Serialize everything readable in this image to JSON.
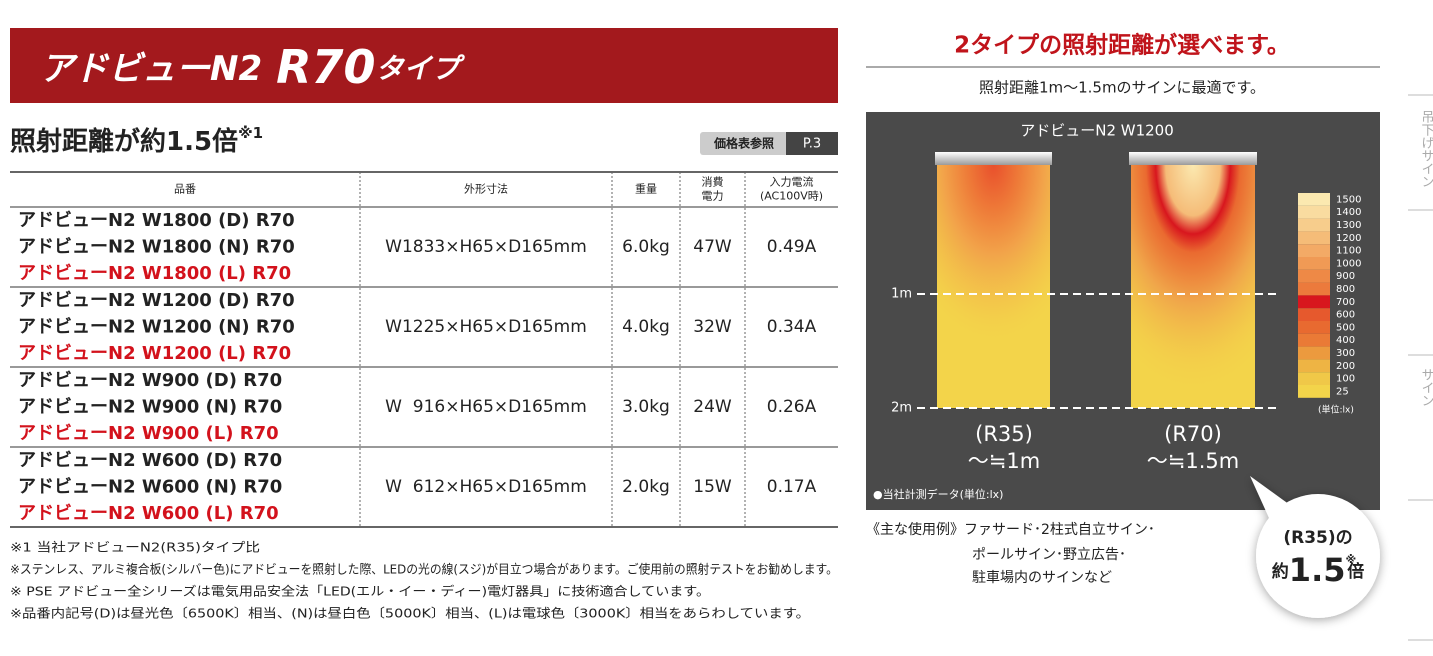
{
  "header": {
    "brand": "アドビューN2",
    "model": "R70",
    "suffix": "タイプ"
  },
  "subtitle": {
    "text": "照射距離が約1.5倍",
    "note": "※1"
  },
  "price_ref": {
    "label": "価格表参照",
    "page": "P.3"
  },
  "table": {
    "headers": [
      [
        "品番"
      ],
      [
        "外形寸法"
      ],
      [
        "重量"
      ],
      [
        "消費",
        "電力"
      ],
      [
        "入力電流",
        "(AC100V時)"
      ]
    ],
    "rows": [
      {
        "models": [
          "アドビューN2 W1800 (D) R70",
          "アドビューN2 W1800 (N) R70",
          "アドビューN2 W1800 (L) R70"
        ],
        "size": "W1833×H65×D165mm",
        "weight": "6.0kg",
        "power": "47W",
        "current": "0.49A"
      },
      {
        "models": [
          "アドビューN2 W1200 (D) R70",
          "アドビューN2 W1200 (N) R70",
          "アドビューN2 W1200 (L) R70"
        ],
        "size": "W1225×H65×D165mm",
        "weight": "4.0kg",
        "power": "32W",
        "current": "0.34A"
      },
      {
        "models": [
          "アドビューN2 W900 (D) R70",
          "アドビューN2 W900 (N) R70",
          "アドビューN2 W900 (L) R70"
        ],
        "size": "W  916×H65×D165mm",
        "weight": "3.0kg",
        "power": "24W",
        "current": "0.26A"
      },
      {
        "models": [
          "アドビューN2 W600 (D) R70",
          "アドビューN2 W600 (N) R70",
          "アドビューN2 W600 (L) R70"
        ],
        "size": "W  612×H65×D165mm",
        "weight": "2.0kg",
        "power": "15W",
        "current": "0.17A"
      }
    ]
  },
  "notes": [
    "※1 当社アドビューN2(R35)タイプ比",
    "※ステンレス、アルミ複合板(シルバー色)にアドビューを照射した際、LEDの光の線(スジ)が目立つ場合があります。ご使用前の照射テストをお勧めします。",
    "※ PSE アドビュー全シリーズは電気用品安全法「LED(エル・イー・ディー)電灯器具」に技術適合しています。",
    "※品番内記号(D)は昼光色〔6500K〕相当、(N)は昼白色〔5000K〕相当、(L)は電球色〔3000K〕相当をあらわしています。"
  ],
  "panel": {
    "title": "2タイプの照射距離が選べます。",
    "subtitle": "照射距離1m〜1.5mのサインに最適です。",
    "chart_label": "アドビューN2 W1200",
    "distances": [
      "1m",
      "2m"
    ],
    "types": [
      {
        "name": "(R35)",
        "range": "〜≒1m"
      },
      {
        "name": "(R70)",
        "range": "〜≒1.5m"
      }
    ],
    "legend": {
      "levels": [
        1500,
        1400,
        1300,
        1200,
        1100,
        1000,
        900,
        800,
        700,
        600,
        500,
        400,
        300,
        200,
        100,
        25
      ],
      "colors": [
        "#fbe9b0",
        "#f9dca0",
        "#f7cd8c",
        "#f5bc78",
        "#f3aa66",
        "#f09a55",
        "#ee8946",
        "#ec7a3c",
        "#d8161e",
        "#e6592d",
        "#e86a30",
        "#ea7a36",
        "#ec9a3e",
        "#eeb444",
        "#f0c848",
        "#f3d44a"
      ],
      "unit": "(単位:lx)"
    },
    "footnote": "●当社計測データ(単位:lx)",
    "usage": [
      "《主な使用例》ファサード･2柱式自立サイン･",
      "ポールサイン･野立広告･",
      "駐車場内のサインなど"
    ],
    "badge": {
      "line1": "(R35)の",
      "prefix": "約",
      "value": "1.5",
      "mark": "※",
      "suffix": "倍"
    }
  },
  "side_tabs": [
    "吊下げサイン",
    "サイン"
  ]
}
